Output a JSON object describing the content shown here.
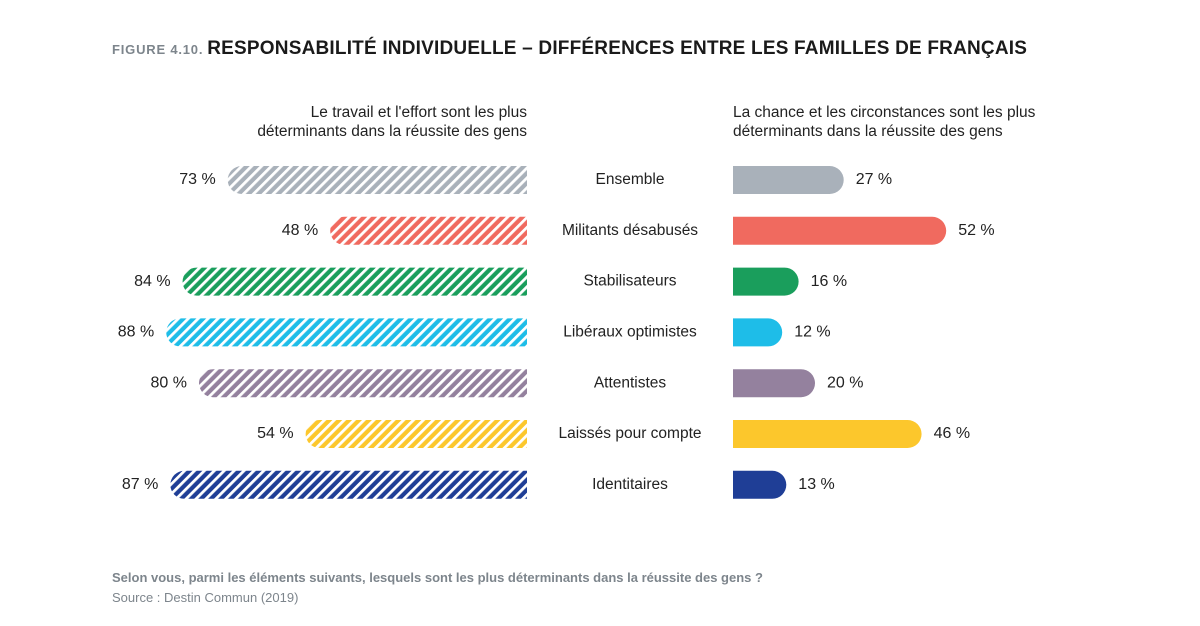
{
  "chart_data": {
    "type": "butterfly",
    "figure_label": "FIGURE 4.10.",
    "title": "RESPONSABILITÉ INDIVIDUELLE – DIFFÉRENCES ENTRE LES FAMILLES DE FRANÇAIS",
    "categories": [
      "Ensemble",
      "Militants désabusés",
      "Stabilisateurs",
      "Libéraux optimistes",
      "Attentistes",
      "Laissés pour compte",
      "Identitaires"
    ],
    "colors": [
      "#a9b1ba",
      "#f06a5f",
      "#1a9e5c",
      "#1ebde8",
      "#94819e",
      "#fcc72c",
      "#1f3e96"
    ],
    "series": [
      {
        "name": "Le travail et l'effort sont les plus déterminants dans la réussite des gens",
        "side": "left",
        "hatched": true,
        "values": [
          73,
          48,
          84,
          88,
          80,
          54,
          87
        ],
        "value_labels": [
          "73 %",
          "48 %",
          "84 %",
          "88 %",
          "80 %",
          "54 %",
          "87 %"
        ]
      },
      {
        "name": "La chance et les circonstances sont les plus déterminants dans la réussite des gens",
        "side": "right",
        "hatched": false,
        "values": [
          27,
          52,
          16,
          12,
          20,
          46,
          13
        ],
        "value_labels": [
          "27 %",
          "52 %",
          "16 %",
          "12 %",
          "20 %",
          "46 %",
          "13 %"
        ]
      }
    ],
    "question": "Selon vous, parmi les éléments suivants, lesquels sont les plus déterminants dans la réussite des gens ?",
    "source": "Source : Destin Commun (2019)"
  }
}
